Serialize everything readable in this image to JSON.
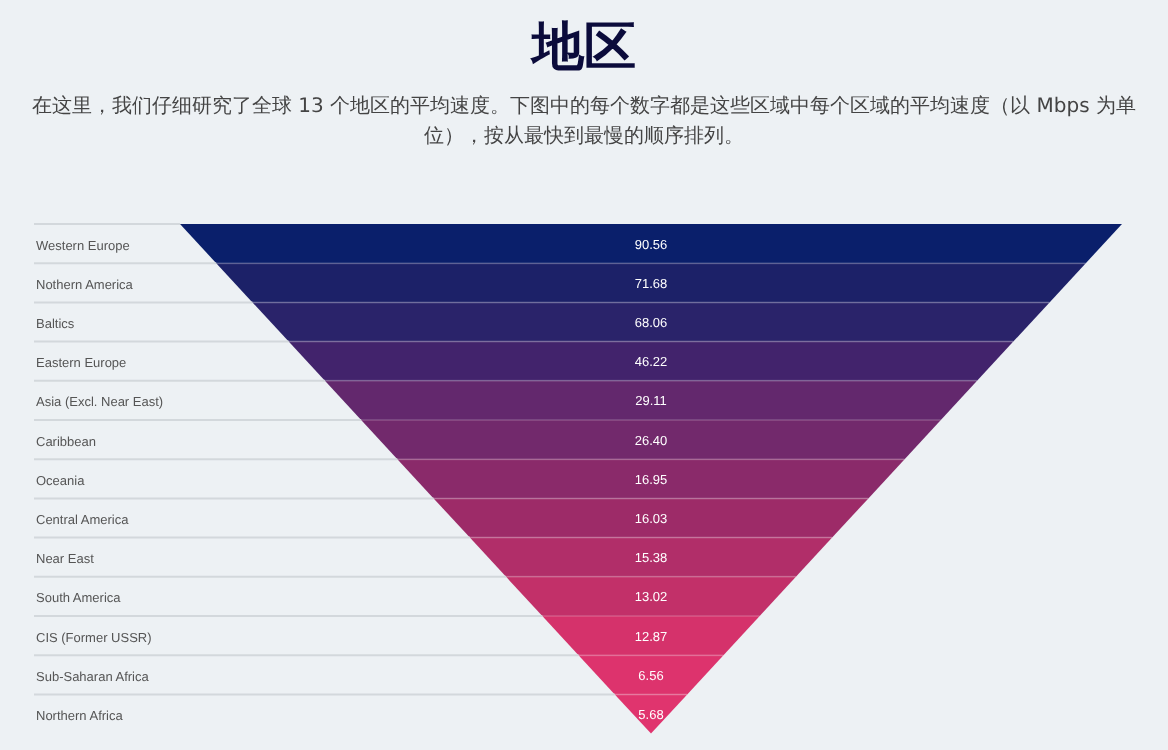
{
  "chart_data": {
    "type": "other",
    "title": "地区",
    "subtitle": "在这里，我们仔细研究了全球 13 个地区的平均速度。下图中的每个数字都是这些区域中每个区域的平均速度（以 Mbps 为单位），按从最快到最慢的顺序排列。",
    "categories": [
      "Western Europe",
      "Nothern America",
      "Baltics",
      "Eastern Europe",
      "Asia (Excl. Near East)",
      "Caribbean",
      "Oceania",
      "Central America",
      "Near East",
      "South America",
      "CIS (Former USSR)",
      "Sub-Saharan Africa",
      "Northern Africa"
    ],
    "values": [
      90.56,
      71.68,
      68.06,
      46.22,
      29.11,
      26.4,
      16.95,
      16.03,
      15.38,
      13.02,
      12.87,
      6.56,
      5.68
    ],
    "value_labels": [
      "90.56",
      "71.68",
      "68.06",
      "46.22",
      "29.11",
      "26.40",
      "16.95",
      "16.03",
      "15.38",
      "13.02",
      "12.87",
      "6.56",
      "5.68"
    ],
    "colors": [
      "#0a1f6b",
      "#1c2168",
      "#2a236a",
      "#42236c",
      "#63286d",
      "#72296c",
      "#8a2a6a",
      "#9d2b68",
      "#b12e69",
      "#c23069",
      "#d5326b",
      "#dd336d",
      "#e0346e"
    ]
  }
}
